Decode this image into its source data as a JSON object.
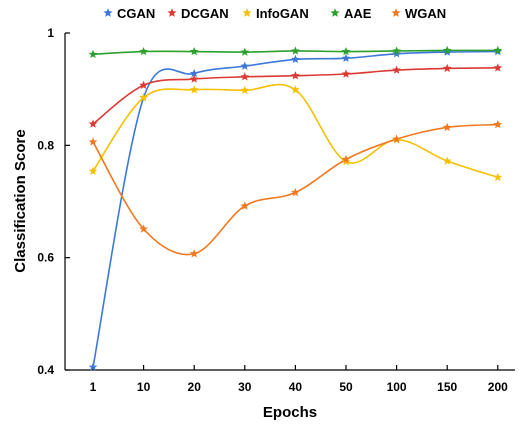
{
  "chart_data": {
    "type": "line",
    "categories": [
      "1",
      "10",
      "20",
      "30",
      "40",
      "50",
      "100",
      "150",
      "200"
    ],
    "xlabel": "Epochs",
    "ylabel": "Classification Score",
    "ylim": [
      0.4,
      1.0
    ],
    "yticks": [
      "0.4",
      "0.6",
      "0.8",
      "1"
    ],
    "grid": false,
    "legend_position": "top",
    "marker": "star",
    "series": [
      {
        "name": "CGAN",
        "color": "#3c78d8",
        "values": [
          0.405,
          0.885,
          0.928,
          0.941,
          0.953,
          0.955,
          0.963,
          0.966,
          0.967
        ]
      },
      {
        "name": "DCGAN",
        "color": "#db3a34",
        "values": [
          0.838,
          0.907,
          0.918,
          0.922,
          0.924,
          0.927,
          0.934,
          0.937,
          0.938
        ]
      },
      {
        "name": "InfoGAN",
        "color": "#f5c000",
        "values": [
          0.754,
          0.885,
          0.899,
          0.898,
          0.899,
          0.771,
          0.81,
          0.772,
          0.743
        ]
      },
      {
        "name": "AAE",
        "color": "#2ca02c",
        "values": [
          0.962,
          0.967,
          0.967,
          0.966,
          0.968,
          0.967,
          0.968,
          0.969,
          0.969
        ]
      },
      {
        "name": "WGAN",
        "color": "#f07820",
        "values": [
          0.806,
          0.651,
          0.607,
          0.692,
          0.716,
          0.775,
          0.811,
          0.832,
          0.837
        ]
      }
    ]
  }
}
